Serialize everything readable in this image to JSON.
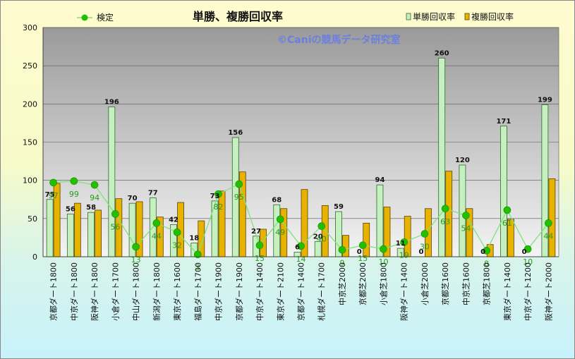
{
  "colors": {
    "bar1_fill": "#c7f0c0",
    "bar1_stroke": "#2b6b2b",
    "bar2_fill": "#e8b200",
    "bar2_stroke": "#5a4300",
    "line": "#7ee27e",
    "marker": "#22c000",
    "line_label": "#2a9a1a",
    "watermark": "#6a7fe0"
  },
  "chart_data": {
    "type": "bar",
    "title": "単勝、複勝回収率",
    "watermark": "©Caniの競馬データ研究室",
    "ylim": [
      0,
      300
    ],
    "yticks": [
      0,
      50,
      100,
      150,
      200,
      250,
      300
    ],
    "grid": true,
    "legend_placement": "top",
    "categories": [
      "京都ダート1800",
      "中京ダート1800",
      "阪神ダート1800",
      "小倉ダート1700",
      "中山ダート1800",
      "新潟ダート1800",
      "東京ダート1600",
      "福島ダート1700",
      "中京ダート1900",
      "京都ダート1900",
      "中京ダート1400",
      "東京ダート2100",
      "京都ダート1400",
      "札幌ダート1700",
      "中京芝2000",
      "京都芝2000",
      "小倉芝1800",
      "阪神ダート1400",
      "小倉芝2000",
      "京都芝1600",
      "中京芝1600",
      "京都芝1800",
      "東京ダート1400",
      "中京ダート1200",
      "阪神ダート2000"
    ],
    "series": [
      {
        "name": "単勝回収率",
        "kind": "bar",
        "values": [
          75,
          56,
          58,
          196,
          70,
          77,
          42,
          18,
          73,
          156,
          27,
          68,
          6,
          20,
          59,
          0,
          94,
          11,
          0,
          260,
          120,
          0,
          171,
          0,
          199
        ]
      },
      {
        "name": "複勝回収率",
        "kind": "bar",
        "values": [
          96,
          70,
          61,
          76,
          72,
          52,
          71,
          47,
          86,
          111,
          36,
          63,
          88,
          67,
          28,
          44,
          65,
          53,
          63,
          112,
          63,
          16,
          49,
          0,
          102
        ]
      },
      {
        "name": "検定",
        "kind": "line",
        "values": [
          97,
          99,
          94,
          56,
          13,
          44,
          32,
          3,
          82,
          95,
          15,
          49,
          14,
          40,
          9,
          15,
          10,
          19,
          30,
          63,
          54,
          8,
          61,
          10,
          44
        ]
      }
    ]
  }
}
